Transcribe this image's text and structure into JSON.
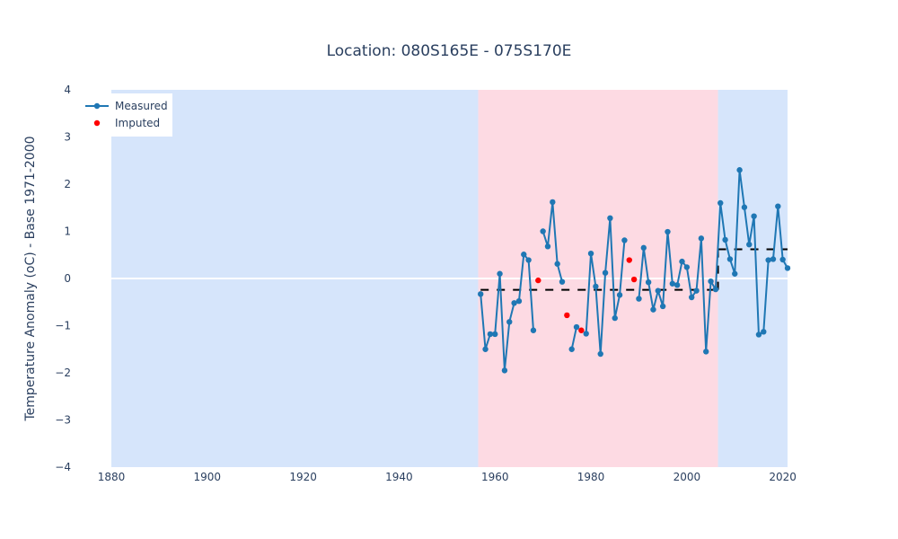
{
  "chart_data": {
    "type": "line",
    "title": "Location: 080S165E - 075S170E",
    "xlabel": "",
    "ylabel": "Temperature Anomaly (oC) - Base 1971-2000",
    "xlim": [
      1880,
      2021
    ],
    "ylim": [
      -4,
      4
    ],
    "x_ticks": [
      1880,
      1900,
      1920,
      1940,
      1960,
      1980,
      2000,
      2020
    ],
    "y_ticks": [
      -4,
      -3,
      -2,
      -1,
      0,
      1,
      2,
      3,
      4
    ],
    "y_tick_labels": [
      "−4",
      "−3",
      "−2",
      "−1",
      "0",
      "1",
      "2",
      "3",
      "4"
    ],
    "grid": false,
    "legend_position": "top-left",
    "background_bands": [
      {
        "x_start": 1880,
        "x_end": 1956.5,
        "color": "#d6e5fb"
      },
      {
        "x_start": 1956.5,
        "x_end": 2006.5,
        "color": "#fddae3"
      },
      {
        "x_start": 2006.5,
        "x_end": 2021,
        "color": "#d6e5fb"
      }
    ],
    "series": [
      {
        "name": "Measured",
        "color": "#1f77b4",
        "mode": "lines+markers",
        "segments": [
          [
            [
              1957,
              -0.33
            ],
            [
              1958,
              -1.5
            ],
            [
              1959,
              -1.18
            ],
            [
              1960,
              -1.18
            ],
            [
              1961,
              0.1
            ],
            [
              1962,
              -1.95
            ],
            [
              1963,
              -0.92
            ],
            [
              1964,
              -0.52
            ],
            [
              1965,
              -0.48
            ],
            [
              1966,
              0.51
            ],
            [
              1967,
              0.39
            ],
            [
              1968,
              -1.1
            ]
          ],
          [
            [
              1970,
              1.0
            ],
            [
              1971,
              0.68
            ],
            [
              1972,
              1.62
            ],
            [
              1973,
              0.31
            ],
            [
              1974,
              -0.07
            ]
          ],
          [
            [
              1976,
              -1.5
            ],
            [
              1977,
              -1.03
            ]
          ],
          [
            [
              1979,
              -1.17
            ],
            [
              1980,
              0.53
            ],
            [
              1981,
              -0.17
            ],
            [
              1982,
              -1.6
            ],
            [
              1983,
              0.12
            ],
            [
              1984,
              1.28
            ],
            [
              1985,
              -0.84
            ],
            [
              1986,
              -0.35
            ],
            [
              1987,
              0.81
            ]
          ],
          [
            [
              1990,
              -0.43
            ],
            [
              1991,
              0.65
            ],
            [
              1992,
              -0.08
            ],
            [
              1993,
              -0.66
            ],
            [
              1994,
              -0.26
            ],
            [
              1995,
              -0.59
            ],
            [
              1996,
              0.99
            ],
            [
              1997,
              -0.11
            ],
            [
              1998,
              -0.14
            ],
            [
              1999,
              0.36
            ],
            [
              2000,
              0.24
            ],
            [
              2001,
              -0.4
            ],
            [
              2002,
              -0.26
            ],
            [
              2003,
              0.85
            ],
            [
              2004,
              -1.55
            ],
            [
              2005,
              -0.06
            ],
            [
              2006,
              -0.23
            ],
            [
              2007,
              1.6
            ],
            [
              2008,
              0.82
            ],
            [
              2009,
              0.41
            ],
            [
              2010,
              0.1
            ],
            [
              2011,
              2.3
            ],
            [
              2012,
              1.51
            ],
            [
              2013,
              0.72
            ],
            [
              2014,
              1.32
            ],
            [
              2015,
              -1.19
            ],
            [
              2016,
              -1.13
            ],
            [
              2017,
              0.39
            ],
            [
              2018,
              0.41
            ],
            [
              2019,
              1.53
            ],
            [
              2020,
              0.4
            ],
            [
              2021,
              0.22
            ]
          ]
        ]
      },
      {
        "name": "Imputed",
        "color": "#ff0000",
        "mode": "markers",
        "points": [
          [
            1969,
            -0.04
          ],
          [
            1975,
            -0.78
          ],
          [
            1978,
            -1.1
          ],
          [
            1988,
            0.39
          ],
          [
            1989,
            -0.02
          ]
        ]
      }
    ],
    "reference_lines": [
      {
        "x": [
          1957,
          2006.5
        ],
        "y": -0.24,
        "style": "dash",
        "color": "#000000"
      },
      {
        "x": [
          2006.5,
          2021
        ],
        "y": 0.62,
        "style": "dash",
        "color": "#000000"
      }
    ],
    "zero_line": {
      "y": 0,
      "color": "#ffffff"
    }
  }
}
